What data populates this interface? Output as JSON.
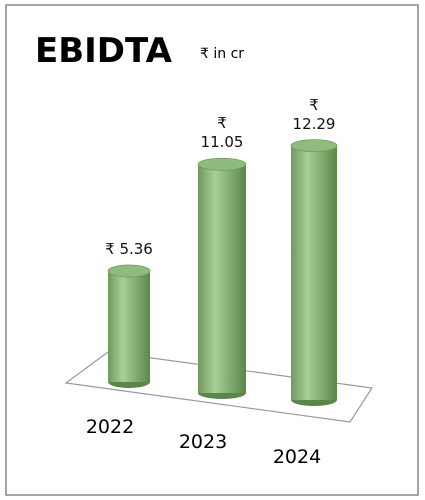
{
  "chart_data": {
    "type": "bar3d",
    "title": "EBIDTA",
    "subtitle": "₹ in cr",
    "categories": [
      "2022",
      "2023",
      "2024"
    ],
    "values": [
      5.36,
      11.05,
      12.29
    ],
    "value_labels": [
      "₹ 5.36",
      "₹\n11.05",
      "₹\n12.29"
    ],
    "color": "#8fbb7c"
  }
}
